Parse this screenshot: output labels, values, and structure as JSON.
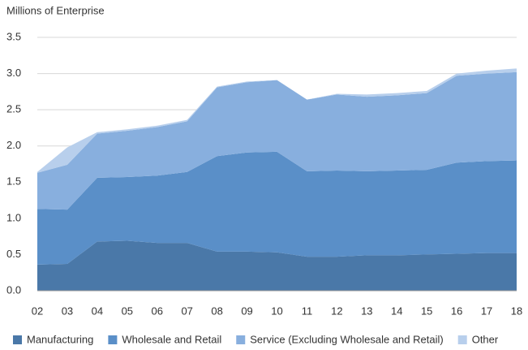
{
  "chart_data": {
    "type": "stacked_area",
    "title": "Millions of Enterprise",
    "categories": [
      "02",
      "03",
      "04",
      "05",
      "06",
      "07",
      "08",
      "09",
      "10",
      "11",
      "12",
      "13",
      "14",
      "15",
      "16",
      "17",
      "18"
    ],
    "series": [
      {
        "name": "Manufacturing",
        "color": "#4a78a8",
        "values": [
          0.36,
          0.37,
          0.68,
          0.69,
          0.66,
          0.66,
          0.54,
          0.54,
          0.53,
          0.47,
          0.47,
          0.49,
          0.49,
          0.5,
          0.51,
          0.52,
          0.52
        ]
      },
      {
        "name": "Wholesale and Retail",
        "color": "#5a8fc8",
        "values": [
          0.77,
          0.75,
          0.88,
          0.88,
          0.93,
          0.98,
          1.32,
          1.37,
          1.39,
          1.18,
          1.19,
          1.16,
          1.17,
          1.17,
          1.26,
          1.27,
          1.28
        ]
      },
      {
        "name": "Service (Excluding Wholesale and Retail)",
        "color": "#88afde",
        "values": [
          0.5,
          0.62,
          0.61,
          0.64,
          0.67,
          0.7,
          0.95,
          0.97,
          0.99,
          0.99,
          1.05,
          1.03,
          1.04,
          1.06,
          1.2,
          1.21,
          1.22
        ]
      },
      {
        "name": "Other",
        "color": "#b8cfec",
        "values": [
          0.01,
          0.24,
          0.02,
          0.02,
          0.02,
          0.02,
          0.01,
          0.01,
          0,
          0,
          0.01,
          0.03,
          0.03,
          0.03,
          0.03,
          0.04,
          0.05
        ]
      }
    ],
    "ylim": [
      0,
      3.5
    ],
    "yticks": [
      {
        "value": 0,
        "label": "0.0"
      },
      0.5,
      {
        "value": 1,
        "label": "1.0"
      },
      1.5,
      {
        "value": 2,
        "label": "2.0"
      },
      2.5,
      {
        "value": 3,
        "label": "3.0"
      },
      3.5
    ],
    "grid": true
  }
}
